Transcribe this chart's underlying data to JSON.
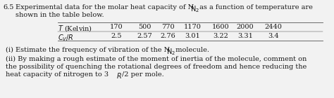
{
  "problem_number": "6.5",
  "table_headers": [
    "$T$ (Kelvin)",
    "170",
    "500",
    "770",
    "1170",
    "1600",
    "2000",
    "2440"
  ],
  "table_row1_label": "$C_V/R$",
  "table_row1_values": [
    "2.5",
    "2.57",
    "2.76",
    "3.01",
    "3.22",
    "3.31",
    "3.4"
  ],
  "line1a": "6.5",
  "line1b": "Experimental data for the molar heat capacity of N",
  "line1c": "2",
  "line1d": " as a function of temperature are",
  "line2": "shown in the table below.",
  "itemi": "(i) Estimate the frequency of vibration of the N",
  "itemi_sub": "2",
  "itemi_end": " molecule.",
  "itemii1": "(ii) By making a rough estimate of the moment of inertia of the molecule, comment on",
  "itemii2": "the possibility of quenching the rotational degrees of freedom and hence reducing the",
  "itemii3a": "heat capacity of nitrogen to 3",
  "itemii3b": "R",
  "itemii3c": "/2 per mole.",
  "bg_color": "#f2f2f2",
  "text_color": "#1a1a1a",
  "font_size": 7.0,
  "line_color": "#555555",
  "fig_width": 4.74,
  "fig_height": 1.4,
  "dpi": 100
}
